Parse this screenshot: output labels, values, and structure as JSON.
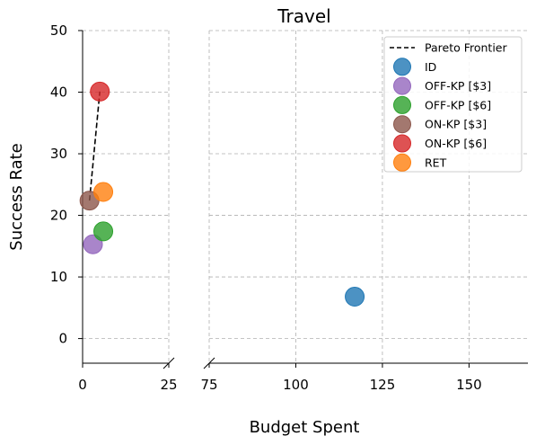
{
  "chart_data": {
    "type": "scatter",
    "title": "Travel",
    "xlabel": "Budget Spent",
    "ylabel": "Success Rate",
    "broken_x_axis": true,
    "x_segments": [
      {
        "range": [
          0,
          25
        ],
        "ticks": [
          "0",
          "25"
        ]
      },
      {
        "range": [
          75,
          167
        ],
        "ticks": [
          "75",
          "100",
          "125",
          "150"
        ]
      }
    ],
    "ylim": [
      -4,
      50
    ],
    "yticks": [
      "0",
      "10",
      "20",
      "30",
      "40",
      "50"
    ],
    "grid": true,
    "legend_position": "top-right",
    "series": [
      {
        "name": "ID",
        "color": "#1f77b4",
        "x": 117,
        "y": 6.8
      },
      {
        "name": "OFF-KP [$3]",
        "color": "#9467bd",
        "x": 3,
        "y": 15.3
      },
      {
        "name": "OFF-KP [$6]",
        "color": "#2ca02c",
        "x": 6,
        "y": 17.4
      },
      {
        "name": "ON-KP [$3]",
        "color": "#8c564b",
        "x": 2,
        "y": 22.4
      },
      {
        "name": "ON-KP [$6]",
        "color": "#d62728",
        "x": 5,
        "y": 40.1
      },
      {
        "name": "RET",
        "color": "#ff7f0e",
        "x": 6,
        "y": 23.8
      }
    ],
    "pareto_frontier": {
      "name": "Pareto Frontier",
      "points": [
        {
          "x": 2,
          "y": 22.4
        },
        {
          "x": 5,
          "y": 40.1
        }
      ]
    }
  }
}
